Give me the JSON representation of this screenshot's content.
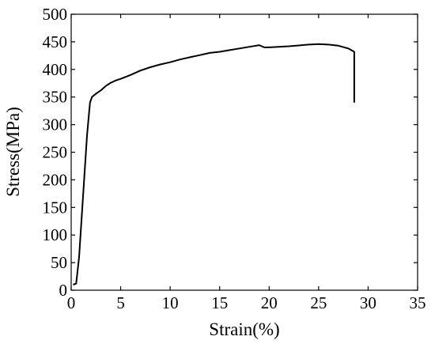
{
  "chart_data": {
    "type": "line",
    "title": "",
    "xlabel": "Strain(%)",
    "ylabel": "Stress(MPa)",
    "xlim": [
      0,
      35
    ],
    "ylim": [
      0,
      500
    ],
    "xticks": [
      0,
      5,
      10,
      15,
      20,
      25,
      30,
      35
    ],
    "yticks": [
      0,
      50,
      100,
      150,
      200,
      250,
      300,
      350,
      400,
      450,
      500
    ],
    "grid": false,
    "series": [
      {
        "color": "#000000",
        "points": [
          [
            0.2,
            10
          ],
          [
            0.5,
            12
          ],
          [
            0.8,
            60
          ],
          [
            1.2,
            170
          ],
          [
            1.6,
            280
          ],
          [
            1.9,
            340
          ],
          [
            2.1,
            350
          ],
          [
            2.5,
            356
          ],
          [
            3.0,
            362
          ],
          [
            3.5,
            370
          ],
          [
            4.0,
            376
          ],
          [
            4.5,
            380
          ],
          [
            5.0,
            383
          ],
          [
            6.0,
            390
          ],
          [
            7.0,
            398
          ],
          [
            8.0,
            404
          ],
          [
            9.0,
            409
          ],
          [
            10.0,
            413
          ],
          [
            11.0,
            418
          ],
          [
            12.0,
            422
          ],
          [
            13.0,
            426
          ],
          [
            14.0,
            430
          ],
          [
            15.0,
            432
          ],
          [
            16.0,
            435
          ],
          [
            17.0,
            438
          ],
          [
            18.0,
            441
          ],
          [
            19.0,
            444
          ],
          [
            19.5,
            440
          ],
          [
            20.0,
            440
          ],
          [
            22.0,
            442
          ],
          [
            24.0,
            445
          ],
          [
            25.0,
            446
          ],
          [
            26.0,
            445
          ],
          [
            27.0,
            443
          ],
          [
            28.0,
            438
          ],
          [
            28.6,
            432
          ],
          [
            28.6,
            340
          ]
        ]
      }
    ]
  }
}
